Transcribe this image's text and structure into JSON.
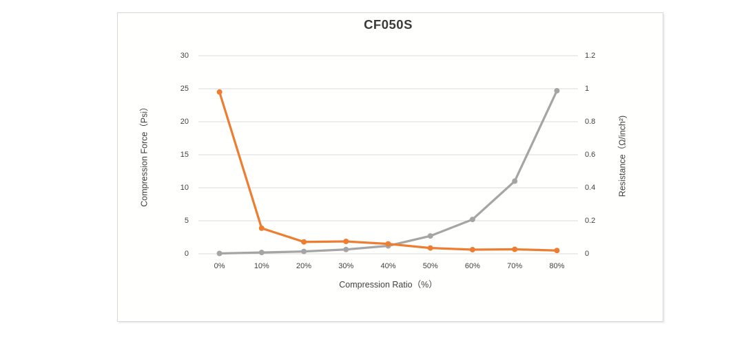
{
  "window": {
    "background_color": "#ffffff",
    "chart_box_border_color": "#d6d6d4",
    "chart_box_background": "#fffffe"
  },
  "chart_data": {
    "type": "line",
    "title": "CF050S",
    "categories": [
      "0%",
      "10%",
      "20%",
      "30%",
      "40%",
      "50%",
      "60%",
      "70%",
      "80%"
    ],
    "series": [
      {
        "name": "Compression Force",
        "axis": "left",
        "color": "#a5a5a5",
        "marker": "circle",
        "values": [
          0.05,
          0.2,
          0.35,
          0.65,
          1.2,
          2.7,
          5.2,
          11,
          24.7
        ]
      },
      {
        "name": "Resistance",
        "axis": "right",
        "color": "#ed7d31",
        "marker": "circle",
        "values": [
          0.98,
          0.155,
          0.072,
          0.075,
          0.06,
          0.035,
          0.025,
          0.027,
          0.02
        ]
      }
    ],
    "x_axis": {
      "label": "Compression Ratio（%）",
      "tick_labels": [
        "0%",
        "10%",
        "20%",
        "30%",
        "40%",
        "50%",
        "60%",
        "70%",
        "80%"
      ]
    },
    "left_axis": {
      "label": "Compression Force（Psi）",
      "min": 0,
      "max": 30,
      "step": 5,
      "tick_labels": [
        "0",
        "5",
        "10",
        "15",
        "20",
        "25",
        "30"
      ]
    },
    "right_axis": {
      "label": "Resistance（Ω/inch²)",
      "min": 0,
      "max": 1.2,
      "step": 0.2,
      "tick_labels": [
        "0",
        "0.2",
        "0.4",
        "0.6",
        "0.8",
        "1",
        "1.2"
      ]
    },
    "grid": true,
    "gridline_color": "#d9d9d9",
    "legend": "none"
  }
}
